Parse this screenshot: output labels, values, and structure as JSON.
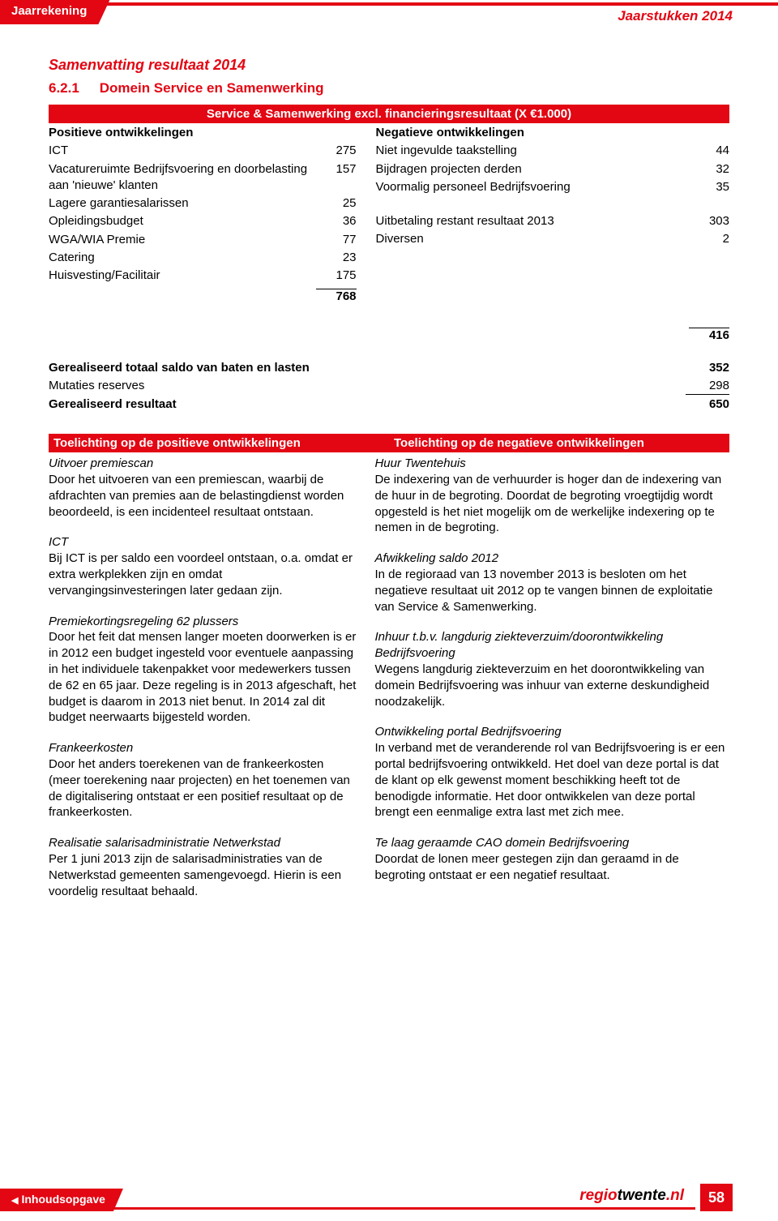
{
  "header": {
    "tab": "Jaarrekening",
    "right": "Jaarstukken 2014"
  },
  "section_title": "Samenvatting resultaat 2014",
  "subsection": {
    "num": "6.2.1",
    "title": "Domein Service en Samenwerking"
  },
  "banner": "Service & Samenwerking excl. financieringsresultaat (X €1.000)",
  "positive": {
    "heading": "Positieve ontwikkelingen",
    "rows": [
      {
        "label": "ICT",
        "val": "275"
      },
      {
        "label": "Vacatureruimte Bedrijfsvoering en doorbelasting aan 'nieuwe' klanten",
        "val": "157"
      },
      {
        "label": "Lagere garantiesalarissen",
        "val": "25"
      },
      {
        "label": "Opleidingsbudget",
        "val": "36"
      },
      {
        "label": "WGA/WIA Premie",
        "val": "77"
      },
      {
        "label": "Catering",
        "val": "23"
      },
      {
        "label": "Huisvesting/Facilitair",
        "val": "175"
      }
    ],
    "total": "768"
  },
  "negative": {
    "heading": "Negatieve ontwikkelingen",
    "rows": [
      {
        "label": "Niet ingevulde taakstelling",
        "val": "44"
      },
      {
        "label": "Bijdragen projecten derden",
        "val": "32"
      },
      {
        "label": "Voormalig personeel Bedrijfsvoering",
        "val": "35"
      },
      {
        "label": "Uitbetaling restant resultaat 2013",
        "val": "303"
      },
      {
        "label": "Diversen",
        "val": "2"
      }
    ],
    "total": "416"
  },
  "summary": [
    {
      "label": "Gerealiseerd totaal saldo van baten en lasten",
      "val": "352",
      "bold": true
    },
    {
      "label": "Mutaties reserves",
      "val": "298",
      "bold": false,
      "underline": true
    },
    {
      "label": "Gerealiseerd resultaat",
      "val": "650",
      "bold": true
    }
  ],
  "toelichting": {
    "left_header": "Toelichting op de positieve ontwikkelingen",
    "right_header": "Toelichting op de negatieve ontwikkelingen",
    "left": [
      {
        "title": "Uitvoer premiescan",
        "body": "Door het uitvoeren van een premiescan, waarbij de afdrachten van premies aan de belastingdienst worden beoordeeld, is een incidenteel resultaat ontstaan."
      },
      {
        "title": "ICT",
        "body": "Bij ICT is per saldo een voordeel ontstaan, o.a. omdat er extra werkplekken zijn en omdat vervangingsinvesteringen later gedaan zijn."
      },
      {
        "title": "Premiekortingsregeling 62 plussers",
        "body": "Door het feit dat mensen langer moeten doorwerken is er in 2012 een budget ingesteld voor eventuele aanpassing in het individuele takenpakket voor medewerkers tussen de 62 en 65 jaar. Deze regeling is in 2013 afgeschaft, het budget is daarom in 2013 niet benut. In 2014 zal dit budget neerwaarts bijgesteld worden."
      },
      {
        "title": "Frankeerkosten",
        "body": "Door het anders toerekenen van de frankeerkosten (meer toerekening naar projecten) en het toenemen van de digitalisering ontstaat er een positief resultaat op de frankeerkosten."
      },
      {
        "title": "Realisatie salarisadministratie Netwerkstad",
        "body": "Per 1 juni 2013 zijn de salarisadministraties van de Netwerkstad gemeenten samengevoegd. Hierin is een voordelig resultaat behaald."
      }
    ],
    "right": [
      {
        "title": "Huur Twentehuis",
        "body": "De indexering van de verhuurder is hoger dan de indexering van de huur in de begroting. Doordat de begroting vroegtijdig wordt opgesteld is het niet mogelijk om de werkelijke indexering op te nemen in de begroting."
      },
      {
        "title": "Afwikkeling saldo 2012",
        "body": "In de regioraad van 13 november 2013 is besloten om het negatieve resultaat uit 2012 op te vangen binnen de exploitatie van Service & Samenwerking."
      },
      {
        "title": "Inhuur t.b.v. langdurig ziekteverzuim/doorontwikkeling Bedrijfsvoering",
        "body": "Wegens langdurig ziekteverzuim en het doorontwikkeling van domein Bedrijfsvoering was inhuur van externe deskundigheid noodzakelijk."
      },
      {
        "title": "Ontwikkeling portal Bedrijfsvoering",
        "body": "In verband met de veranderende rol van Bedrijfsvoering is er een portal bedrijfsvoering ontwikkeld. Het doel van deze portal is dat de klant op elk gewenst moment beschikking heeft tot de benodigde informatie. Het door ontwikkelen van deze portal brengt een eenmalige extra last met zich mee."
      },
      {
        "title": "Te laag geraamde CAO domein Bedrijfsvoering",
        "body": "Doordat de lonen meer gestegen zijn dan geraamd in de begroting ontstaat er een negatief resultaat."
      }
    ]
  },
  "footer": {
    "link": "Inhoudsopgave",
    "logo": {
      "a": "regio",
      "b": "twente",
      "c": ".nl"
    },
    "page": "58"
  },
  "colors": {
    "brand": "#e30613",
    "text": "#000000",
    "bg": "#ffffff"
  }
}
